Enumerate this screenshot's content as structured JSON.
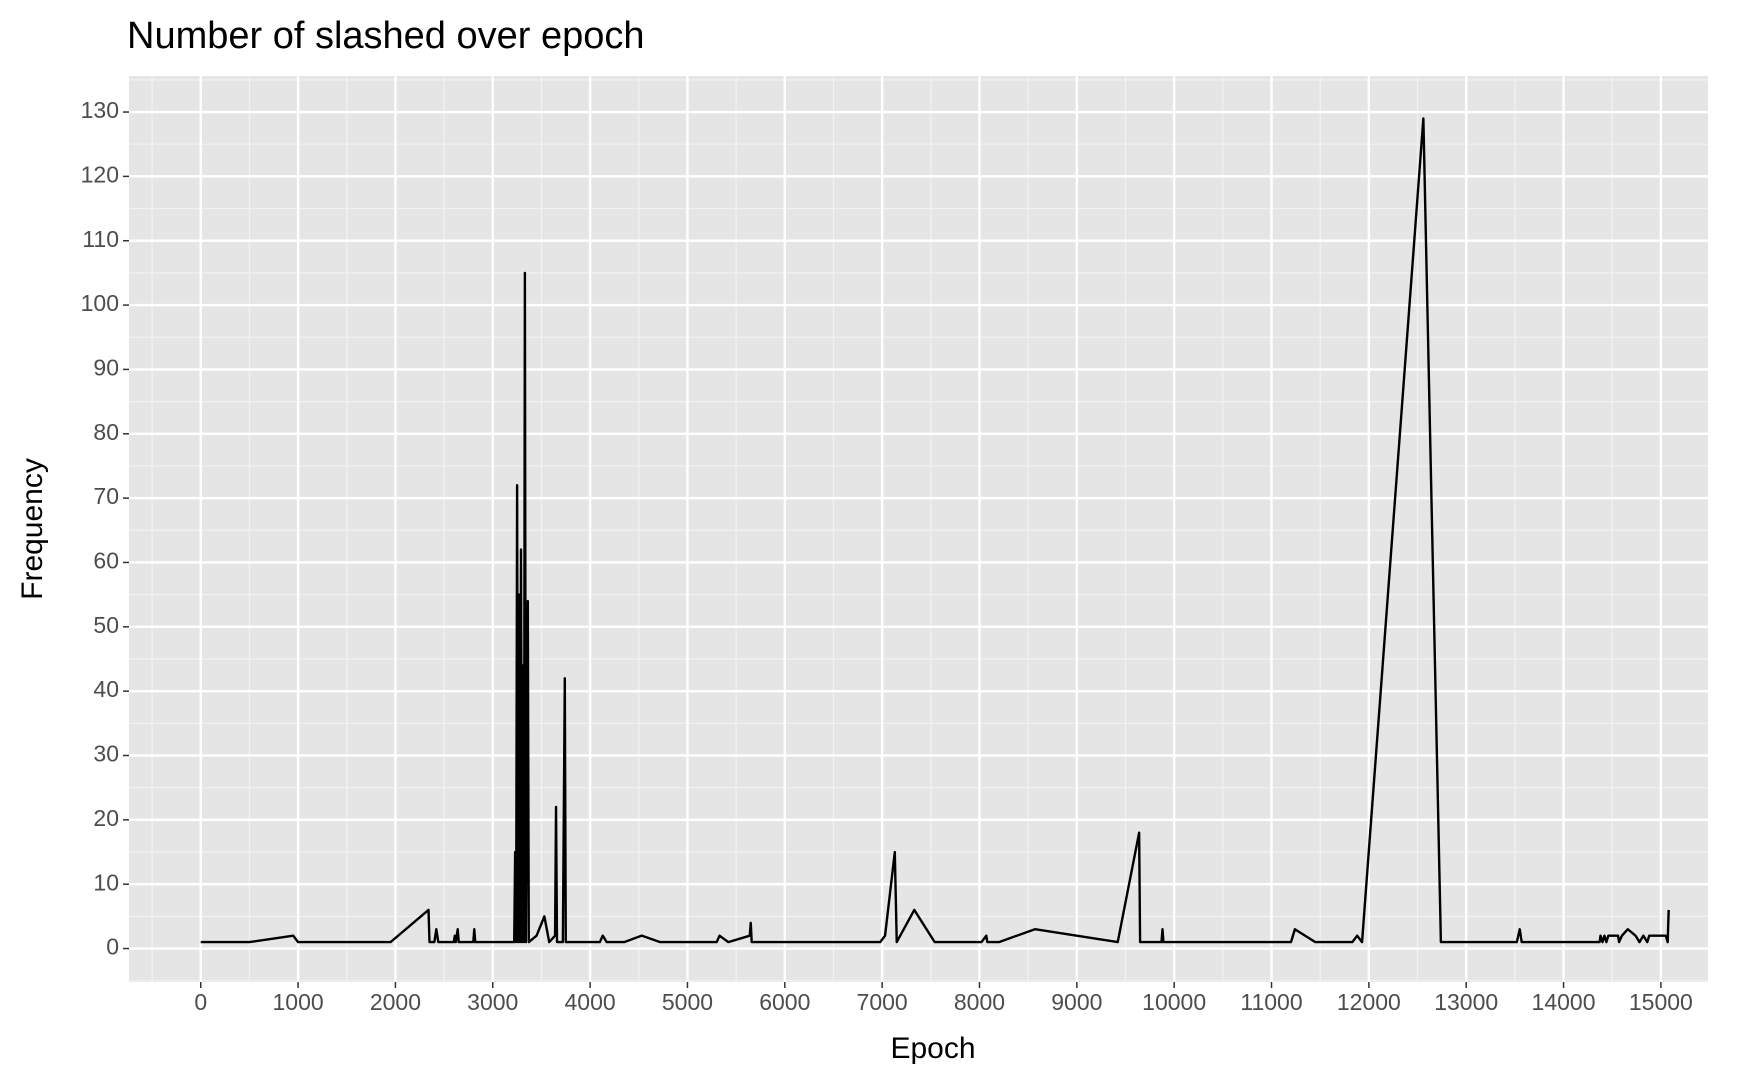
{
  "chart_data": {
    "type": "line",
    "title": "Number of slashed over epoch",
    "x_label": "Epoch",
    "y_label": "Frequency",
    "x": [
      0,
      500,
      950,
      1000,
      1950,
      2340,
      2350,
      2400,
      2420,
      2440,
      2600,
      2610,
      2620,
      2640,
      2650,
      2800,
      2810,
      2820,
      3220,
      3230,
      3240,
      3250,
      3260,
      3270,
      3280,
      3290,
      3300,
      3310,
      3320,
      3330,
      3340,
      3360,
      3370,
      3450,
      3530,
      3580,
      3640,
      3650,
      3660,
      3720,
      3740,
      3750,
      4100,
      4130,
      4170,
      4350,
      4530,
      4720,
      5300,
      5330,
      5420,
      5640,
      5650,
      5660,
      6980,
      7030,
      7130,
      7150,
      7330,
      7540,
      8020,
      8070,
      8080,
      8200,
      8570,
      9420,
      9640,
      9650,
      9870,
      9880,
      9890,
      11200,
      11240,
      11450,
      11830,
      11880,
      11930,
      12560,
      12740,
      13520,
      13550,
      13570,
      14370,
      14380,
      14400,
      14420,
      14440,
      14460,
      14560,
      14570,
      14600,
      14660,
      14740,
      14780,
      14820,
      14860,
      14880,
      15050,
      15070,
      15080
    ],
    "series": [
      {
        "name": "Frequency",
        "color": "#000000",
        "values": [
          1,
          1,
          2,
          1,
          1,
          6,
          1,
          1,
          3,
          1,
          1,
          2,
          1,
          3,
          1,
          1,
          3,
          1,
          1,
          15,
          1,
          72,
          1,
          55,
          1,
          62,
          1,
          44,
          1,
          105,
          1,
          54,
          1,
          2,
          5,
          1,
          2,
          22,
          1,
          1,
          42,
          1,
          1,
          2,
          1,
          1,
          2,
          1,
          1,
          2,
          1,
          2,
          4,
          1,
          1,
          2,
          15,
          1,
          6,
          1,
          1,
          2,
          1,
          1,
          3,
          1,
          18,
          1,
          1,
          3,
          1,
          1,
          3,
          1,
          1,
          2,
          1,
          129,
          1,
          1,
          3,
          1,
          1,
          2,
          1,
          2,
          1,
          2,
          2,
          1,
          2,
          3,
          2,
          1,
          2,
          1,
          2,
          2,
          1,
          6
        ]
      }
    ],
    "xlim": [
      -737,
      15484
    ],
    "ylim": [
      -5.2,
      135.6
    ],
    "xticks": [
      0,
      1000,
      2000,
      3000,
      4000,
      5000,
      6000,
      7000,
      8000,
      9000,
      10000,
      11000,
      12000,
      13000,
      14000,
      15000
    ],
    "yticks": [
      0,
      10,
      20,
      30,
      40,
      50,
      60,
      70,
      80,
      90,
      100,
      110,
      120,
      130
    ],
    "grid": true,
    "minor_grid": true
  }
}
